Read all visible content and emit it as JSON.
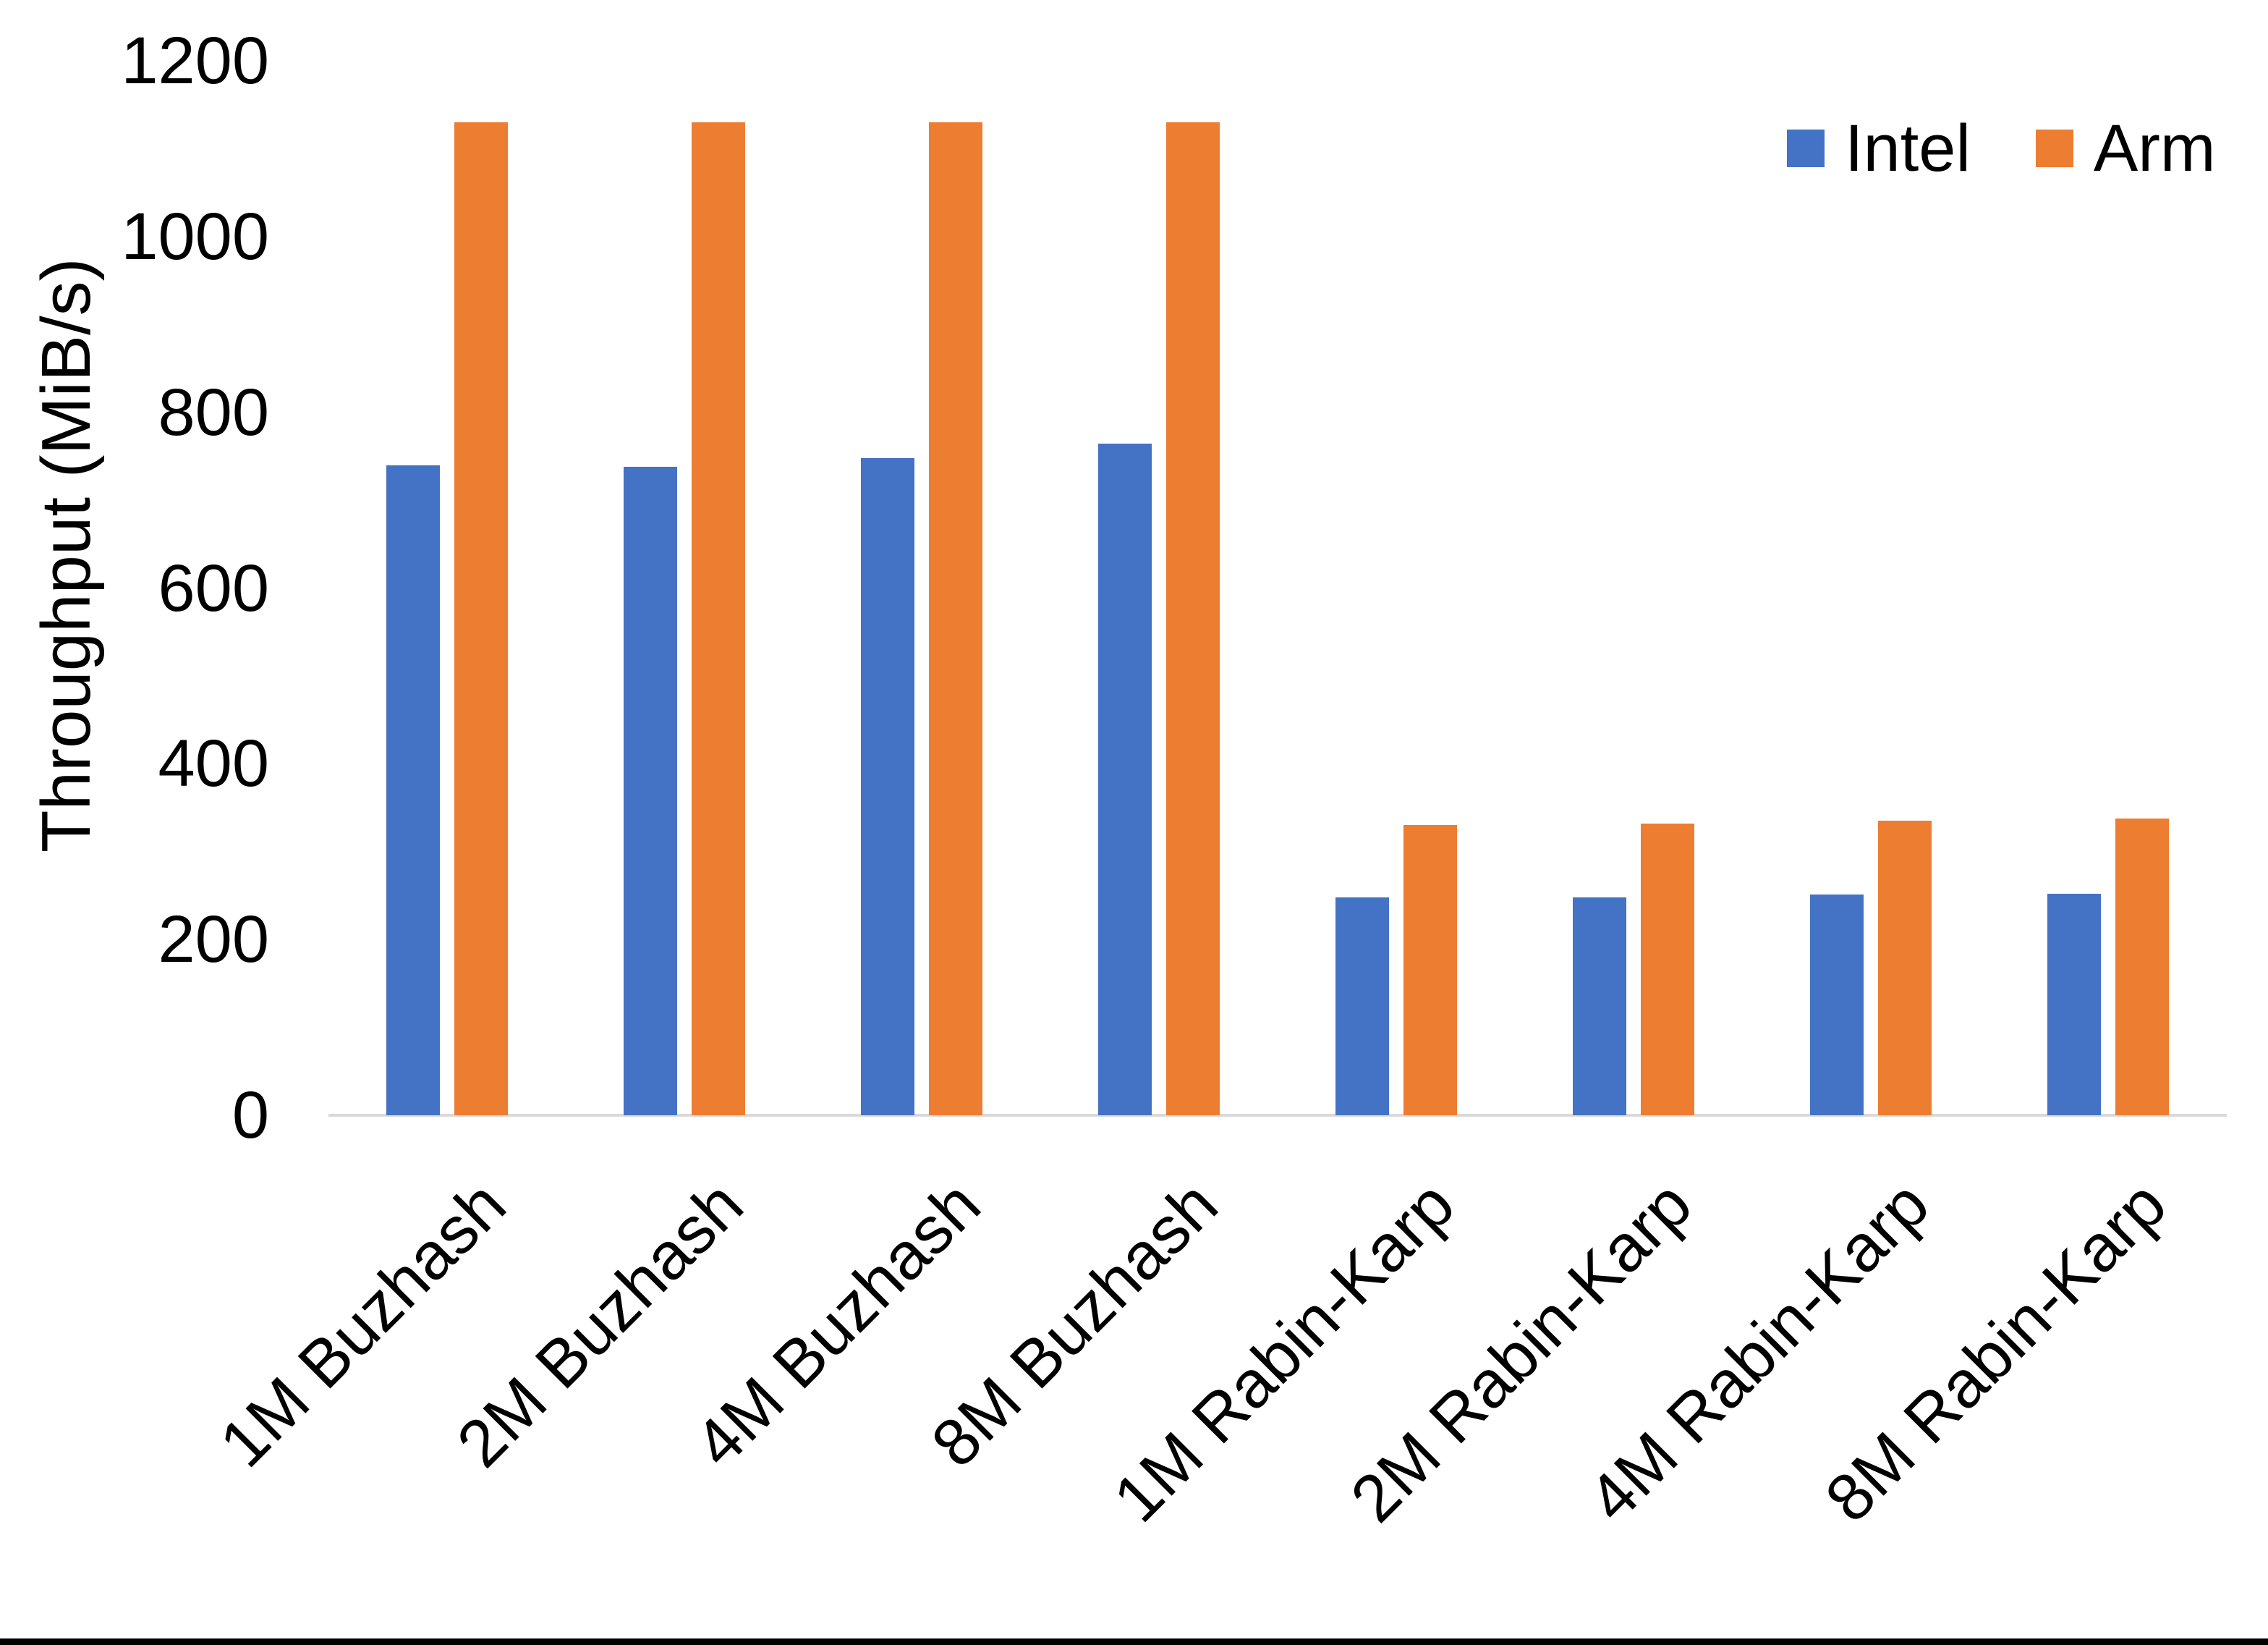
{
  "chart_data": {
    "type": "bar",
    "title": "",
    "xlabel": "",
    "ylabel": "Throughput (MiB/s)",
    "ylim": [
      0,
      1200
    ],
    "yticks": [
      0,
      200,
      400,
      600,
      800,
      1000,
      1200
    ],
    "grid": false,
    "legend_position": "top-right",
    "axis_line_color": "#d9d9d9",
    "categories": [
      "1M Buzhash",
      "2M Buzhash",
      "4M Buzhash",
      "8M Buzhash",
      "1M Rabin-Karp",
      "2M Rabin-Karp",
      "4M Rabin-Karp",
      "8M Rabin-Karp"
    ],
    "series": [
      {
        "name": "Intel",
        "color": "#4472C4",
        "values": [
          740,
          738,
          748,
          764,
          248,
          248,
          251,
          252
        ]
      },
      {
        "name": "Arm",
        "color": "#ED7D31",
        "values": [
          1130,
          1130,
          1130,
          1130,
          330,
          332,
          335,
          338
        ]
      }
    ]
  }
}
